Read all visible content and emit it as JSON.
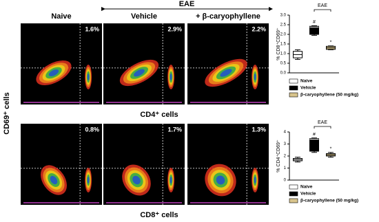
{
  "flow": {
    "group": "EAE",
    "y_label": "CD69⁺ cells",
    "columns": [
      "Naive",
      "Vehicle",
      "+ β-caryophyllene"
    ],
    "rows": [
      {
        "label": "CD4⁺ cells",
        "percents": [
          "1.6%",
          "2.9%",
          "2.2%"
        ]
      },
      {
        "label": "CD8⁺ cells",
        "percents": [
          "0.8%",
          "1.7%",
          "1.3%"
        ]
      }
    ]
  },
  "chart_data": [
    {
      "type": "box",
      "title": "EAE",
      "y_label": "% CD8⁺CD69⁺",
      "ylim": [
        0,
        3.0
      ],
      "yticks": [
        {
          "value": 0,
          "label": "0.0"
        },
        {
          "value": 0.5,
          "label": "0.5"
        },
        {
          "value": 1.0,
          "label": "1.0"
        },
        {
          "value": 1.5,
          "label": "1.5"
        },
        {
          "value": 2.0,
          "label": "2.0"
        },
        {
          "value": 2.5,
          "label": "2.5"
        },
        {
          "value": 3.0,
          "label": "3.0"
        }
      ],
      "series": [
        {
          "name": "Naive",
          "color": "#ffffff",
          "min": 0.7,
          "q1": 0.78,
          "median": 0.95,
          "q3": 1.12,
          "max": 1.2
        },
        {
          "name": "Vehicle",
          "color": "#000000",
          "min": 1.95,
          "q1": 2.0,
          "median": 2.38,
          "q3": 2.42,
          "max": 2.45,
          "annotation": "#"
        },
        {
          "name": "β-caryophyllene (50 mg/kg)",
          "color": "#d8c48c",
          "min": 1.2,
          "q1": 1.22,
          "median": 1.3,
          "q3": 1.38,
          "max": 1.4,
          "annotation": "*"
        }
      ]
    },
    {
      "type": "box",
      "title": "EAE",
      "y_label": "% CD4⁺CD69⁺",
      "ylim": [
        0,
        4
      ],
      "yticks": [
        0,
        1,
        2,
        3,
        4
      ],
      "series": [
        {
          "name": "Naive",
          "color": "#ffffff",
          "min": 1.5,
          "q1": 1.6,
          "median": 1.7,
          "q3": 1.8,
          "max": 1.9
        },
        {
          "name": "Vehicle",
          "color": "#000000",
          "min": 2.3,
          "q1": 2.4,
          "median": 3.4,
          "q3": 3.45,
          "max": 3.5,
          "annotation": "#"
        },
        {
          "name": "β-caryophyllene (50 mg/kg)",
          "color": "#d8c48c",
          "min": 1.9,
          "q1": 2.0,
          "median": 2.1,
          "q3": 2.2,
          "max": 2.3,
          "annotation": "*"
        }
      ]
    }
  ]
}
